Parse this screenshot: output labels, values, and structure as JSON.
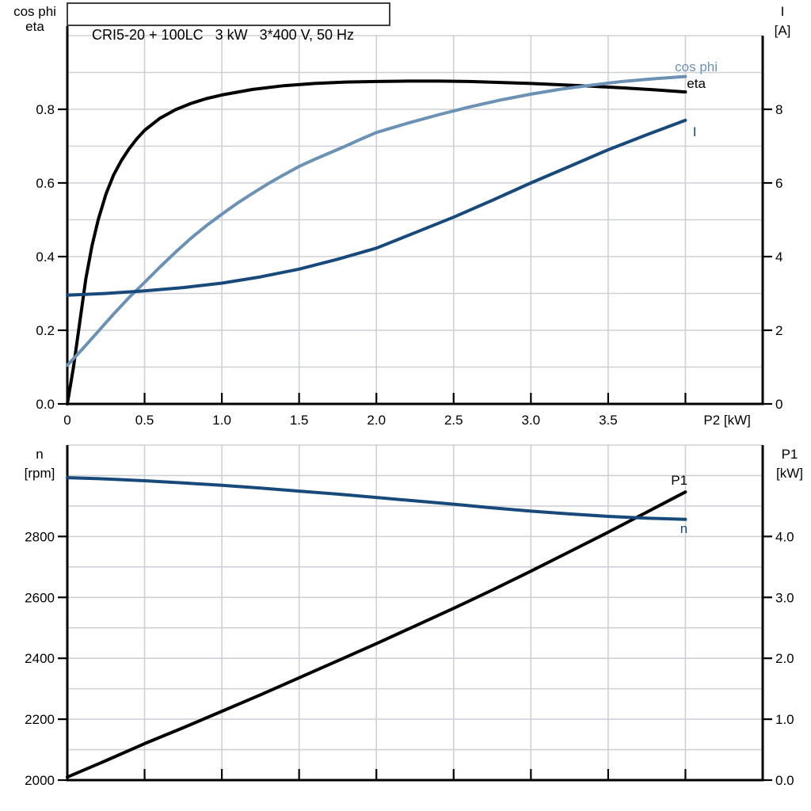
{
  "title_box": "CRI5-20 + 100LC   3 kW   3*400 V, 50 Hz",
  "colors": {
    "black": "#000000",
    "dark_blue": "#17497b",
    "light_blue": "#6b91b4",
    "grid": "#cdd1d5",
    "background": "#ffffff"
  },
  "chart_data": [
    {
      "type": "line",
      "id": "top-chart",
      "x_axis": {
        "label": "P2 [kW]",
        "label_at": 4.27,
        "range": [
          0,
          4.5
        ],
        "grid_step": 0.5,
        "ticks": [
          {
            "v": 0,
            "t": "0"
          },
          {
            "v": 0.5,
            "t": "0.5"
          },
          {
            "v": 1.0,
            "t": "1.0"
          },
          {
            "v": 1.5,
            "t": "1.5"
          },
          {
            "v": 2.0,
            "t": "2.0"
          },
          {
            "v": 2.5,
            "t": "2.5"
          },
          {
            "v": 3.0,
            "t": "3.0"
          },
          {
            "v": 3.5,
            "t": "3.5"
          },
          {
            "v": 4.0,
            "t": ""
          }
        ]
      },
      "left_axis": {
        "header": [
          "cos phi",
          "eta"
        ],
        "range": [
          0,
          1.0
        ],
        "grid_step": 0.1,
        "ticks": [
          {
            "v": 0.0,
            "t": "0.0"
          },
          {
            "v": 0.2,
            "t": "0.2"
          },
          {
            "v": 0.4,
            "t": "0.4"
          },
          {
            "v": 0.6,
            "t": "0.6"
          },
          {
            "v": 0.8,
            "t": "0.8"
          }
        ]
      },
      "right_axis": {
        "header": [
          "I",
          "[A]"
        ],
        "range": [
          0,
          10
        ],
        "ticks": [
          {
            "v": 0,
            "t": "0"
          },
          {
            "v": 2,
            "t": "2"
          },
          {
            "v": 4,
            "t": "4"
          },
          {
            "v": 6,
            "t": "6"
          },
          {
            "v": 8,
            "t": "8"
          }
        ]
      },
      "series": [
        {
          "name": "eta",
          "axis": "left",
          "color_key": "black",
          "label": "eta",
          "label_at": [
            4.07,
            0.871
          ],
          "points": [
            [
              0,
              0
            ],
            [
              0.04,
              0.1
            ],
            [
              0.08,
              0.22
            ],
            [
              0.12,
              0.34
            ],
            [
              0.16,
              0.43
            ],
            [
              0.2,
              0.5
            ],
            [
              0.25,
              0.57
            ],
            [
              0.3,
              0.622
            ],
            [
              0.35,
              0.661
            ],
            [
              0.4,
              0.693
            ],
            [
              0.45,
              0.72
            ],
            [
              0.5,
              0.743
            ],
            [
              0.6,
              0.776
            ],
            [
              0.7,
              0.799
            ],
            [
              0.8,
              0.816
            ],
            [
              0.9,
              0.829
            ],
            [
              1,
              0.839
            ],
            [
              1.2,
              0.854
            ],
            [
              1.4,
              0.864
            ],
            [
              1.6,
              0.87
            ],
            [
              1.8,
              0.874
            ],
            [
              2,
              0.8755
            ],
            [
              2.2,
              0.8765
            ],
            [
              2.4,
              0.8765
            ],
            [
              2.6,
              0.8755
            ],
            [
              2.8,
              0.873
            ],
            [
              3,
              0.87
            ],
            [
              3.2,
              0.8665
            ],
            [
              3.4,
              0.8625
            ],
            [
              3.6,
              0.858
            ],
            [
              3.8,
              0.853
            ],
            [
              4,
              0.847
            ]
          ]
        },
        {
          "name": "cos phi",
          "axis": "left",
          "color_key": "light_blue",
          "label": "cos phi",
          "label_at": [
            4.07,
            0.916
          ],
          "points": [
            [
              0,
              0.105
            ],
            [
              0.1,
              0.15
            ],
            [
              0.2,
              0.197
            ],
            [
              0.3,
              0.244
            ],
            [
              0.4,
              0.289
            ],
            [
              0.5,
              0.33
            ],
            [
              0.6,
              0.372
            ],
            [
              0.7,
              0.412
            ],
            [
              0.8,
              0.45
            ],
            [
              0.9,
              0.484
            ],
            [
              1,
              0.515
            ],
            [
              1.1,
              0.545
            ],
            [
              1.2,
              0.572
            ],
            [
              1.3,
              0.598
            ],
            [
              1.4,
              0.622
            ],
            [
              1.5,
              0.645
            ],
            [
              1.6,
              0.664
            ],
            [
              1.7,
              0.682
            ],
            [
              1.8,
              0.7
            ],
            [
              1.9,
              0.719
            ],
            [
              2,
              0.737
            ],
            [
              2.2,
              0.762
            ],
            [
              2.4,
              0.785
            ],
            [
              2.6,
              0.806
            ],
            [
              2.8,
              0.825
            ],
            [
              3,
              0.841
            ],
            [
              3.2,
              0.855
            ],
            [
              3.4,
              0.866
            ],
            [
              3.6,
              0.876
            ],
            [
              3.8,
              0.883
            ],
            [
              4,
              0.889
            ]
          ]
        },
        {
          "name": "I",
          "axis": "right",
          "color_key": "dark_blue",
          "label": "I",
          "label_at": [
            4.06,
            7.4
          ],
          "points": [
            [
              0,
              2.95
            ],
            [
              0.25,
              3
            ],
            [
              0.5,
              3.07
            ],
            [
              0.75,
              3.16
            ],
            [
              1,
              3.28
            ],
            [
              1.25,
              3.45
            ],
            [
              1.5,
              3.66
            ],
            [
              1.75,
              3.93
            ],
            [
              2,
              4.23
            ],
            [
              2.25,
              4.65
            ],
            [
              2.5,
              5.07
            ],
            [
              2.75,
              5.53
            ],
            [
              3,
              6
            ],
            [
              3.25,
              6.45
            ],
            [
              3.5,
              6.9
            ],
            [
              3.75,
              7.31
            ],
            [
              4,
              7.7
            ]
          ]
        }
      ]
    },
    {
      "type": "line",
      "id": "bottom-chart",
      "x_axis": {
        "label": "",
        "label_at": null,
        "range": [
          0,
          4.5
        ],
        "grid_step": 0.5,
        "ticks": [
          {
            "v": 0.5,
            "t": ""
          },
          {
            "v": 1.0,
            "t": ""
          },
          {
            "v": 1.5,
            "t": ""
          },
          {
            "v": 2.0,
            "t": ""
          },
          {
            "v": 2.5,
            "t": ""
          },
          {
            "v": 3.0,
            "t": ""
          },
          {
            "v": 3.5,
            "t": ""
          },
          {
            "v": 4.0,
            "t": ""
          }
        ]
      },
      "left_axis": {
        "header": [
          "n",
          "[rpm]"
        ],
        "range": [
          2000,
          3100
        ],
        "grid_step": 100,
        "ticks": [
          {
            "v": 2000,
            "t": "2000"
          },
          {
            "v": 2200,
            "t": "2200"
          },
          {
            "v": 2400,
            "t": "2400"
          },
          {
            "v": 2600,
            "t": "2600"
          },
          {
            "v": 2800,
            "t": "2800"
          }
        ]
      },
      "right_axis": {
        "header": [
          "P1",
          "[kW]"
        ],
        "range": [
          0,
          5.5
        ],
        "ticks": [
          {
            "v": 0.0,
            "t": "0.0"
          },
          {
            "v": 1.0,
            "t": "1.0"
          },
          {
            "v": 2.0,
            "t": "2.0"
          },
          {
            "v": 3.0,
            "t": "3.0"
          },
          {
            "v": 4.0,
            "t": "4.0"
          }
        ]
      },
      "series": [
        {
          "name": "P1",
          "axis": "right",
          "color_key": "black",
          "label": "P1",
          "label_at": [
            3.96,
            4.93
          ],
          "points": [
            [
              0,
              0.05
            ],
            [
              0.25,
              0.32
            ],
            [
              0.5,
              0.6
            ],
            [
              0.75,
              0.86
            ],
            [
              1,
              1.13
            ],
            [
              1.25,
              1.4
            ],
            [
              1.5,
              1.68
            ],
            [
              1.75,
              1.96
            ],
            [
              2,
              2.24
            ],
            [
              2.25,
              2.53
            ],
            [
              2.5,
              2.82
            ],
            [
              2.75,
              3.12
            ],
            [
              3,
              3.43
            ],
            [
              3.25,
              3.75
            ],
            [
              3.5,
              4.07
            ],
            [
              3.75,
              4.4
            ],
            [
              4,
              4.73
            ]
          ]
        },
        {
          "name": "n",
          "axis": "left",
          "color_key": "dark_blue",
          "label": "n",
          "label_at": [
            3.99,
            2827
          ],
          "points": [
            [
              0,
              2993
            ],
            [
              0.25,
              2989
            ],
            [
              0.5,
              2983
            ],
            [
              0.75,
              2976
            ],
            [
              1,
              2968
            ],
            [
              1.25,
              2959
            ],
            [
              1.5,
              2949
            ],
            [
              1.75,
              2939
            ],
            [
              2,
              2928
            ],
            [
              2.25,
              2917
            ],
            [
              2.5,
              2906
            ],
            [
              2.75,
              2894
            ],
            [
              3,
              2883
            ],
            [
              3.25,
              2874
            ],
            [
              3.5,
              2866
            ],
            [
              3.75,
              2860
            ],
            [
              4,
              2856
            ]
          ]
        }
      ]
    }
  ]
}
